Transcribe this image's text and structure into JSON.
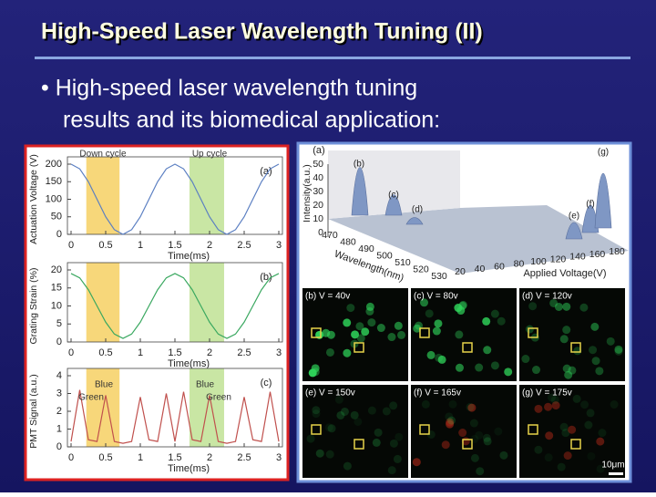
{
  "header": {
    "title": "High-Speed Laser Wavelength Tuning (II)"
  },
  "bullet": {
    "line1": "• High-speed laser wavelength tuning",
    "line2": "results and its biomedical application:"
  },
  "figure_left": {
    "time": [
      0,
      0.125,
      0.25,
      0.375,
      0.5,
      0.625,
      0.75,
      0.875,
      1,
      1.125,
      1.25,
      1.375,
      1.5,
      1.625,
      1.75,
      1.875,
      2,
      2.125,
      2.25,
      2.375,
      2.5,
      2.625,
      2.75,
      2.875,
      3
    ],
    "xticks": [
      0,
      0.5,
      1,
      1.5,
      2,
      2.5,
      3
    ],
    "xlim": [
      0,
      3
    ],
    "xlabel": "Time(ms)",
    "cycle_labels": [
      "Down cycle",
      "Up cycle"
    ],
    "shaded": [
      {
        "from": 0.22,
        "to": 0.7,
        "color": "#f7d77a"
      },
      {
        "from": 1.71,
        "to": 2.21,
        "color": "#c9e6a4"
      }
    ],
    "panels": [
      {
        "label": "(a)",
        "ylabel": "Actuation Voltage (V)",
        "ylim": [
          0,
          200
        ],
        "yticks": [
          0,
          50,
          100,
          150,
          200
        ],
        "color": "#5b7fc2",
        "values": [
          200,
          186.6,
          150,
          100,
          50,
          13.4,
          0,
          13.4,
          50,
          100,
          150,
          186.6,
          200,
          186.6,
          150,
          100,
          50,
          13.4,
          0,
          13.4,
          50,
          100,
          150,
          186.6,
          200
        ]
      },
      {
        "label": "(b)",
        "ylabel": "Grating Strain (%)",
        "ylim": [
          0,
          20
        ],
        "yticks": [
          0,
          5,
          10,
          15,
          20
        ],
        "color": "#3aa860",
        "values": [
          19,
          17.8,
          14.5,
          10,
          5.5,
          2.2,
          1,
          2.2,
          5.5,
          10,
          14.5,
          17.8,
          19,
          17.8,
          14.5,
          10,
          5.5,
          2.2,
          1,
          2.2,
          5.5,
          10,
          14.5,
          17.8,
          19
        ]
      },
      {
        "label": "(c)",
        "ylabel": "PMT Signal (a.u.)",
        "ylim": [
          0,
          4
        ],
        "yticks": [
          0,
          1,
          2,
          3,
          4
        ],
        "color": "#c0504d",
        "values": [
          0.3,
          3.2,
          0.4,
          0.3,
          2.9,
          0.3,
          0.2,
          0.3,
          2.8,
          0.4,
          0.3,
          3.0,
          0.3,
          3.1,
          0.4,
          0.3,
          2.9,
          0.3,
          0.2,
          0.3,
          2.8,
          0.4,
          0.3,
          3.1,
          0.3
        ],
        "annotations": [
          "Blue",
          "Green",
          "Blue",
          "Green"
        ]
      }
    ]
  },
  "figure_right": {
    "label": "(a)",
    "ylabel": "Intensity(a.u.)",
    "yticks": [
      0,
      10,
      20,
      30,
      40,
      50
    ],
    "ylim": [
      0,
      50
    ],
    "xlabel": "Wavelength(nm)",
    "xticks": [
      470,
      480,
      490,
      500,
      510,
      520,
      530
    ],
    "zlabel": "Applied Voltage(V)",
    "zticks": [
      20,
      40,
      60,
      80,
      100,
      120,
      140,
      160,
      180
    ],
    "peaks": [
      {
        "label": "(b)",
        "value": 35
      },
      {
        "label": "(c)",
        "value": 15
      },
      {
        "label": "(d)",
        "value": 5
      },
      {
        "label": "(e)",
        "value": 12
      },
      {
        "label": "(f)",
        "value": 20
      },
      {
        "label": "(g)",
        "value": 40
      }
    ],
    "images": [
      "(b) V = 40v",
      "(c) V = 80v",
      "(d) V = 120v",
      "(e) V = 150v",
      "(f) V = 165v",
      "(g) V = 175v"
    ],
    "scale_bar": "10μm"
  }
}
